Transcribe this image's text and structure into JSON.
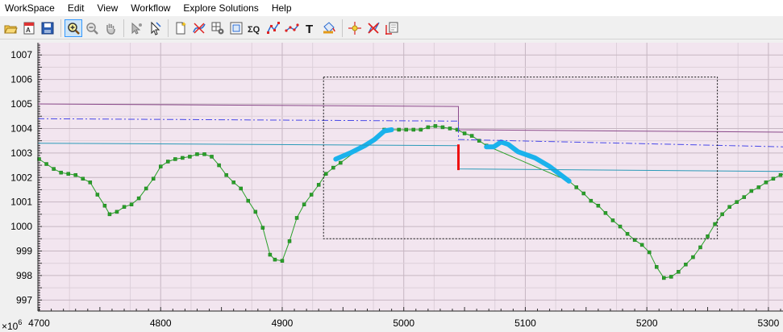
{
  "menu": [
    "WorkSpace",
    "Edit",
    "View",
    "Workflow",
    "Explore Solutions",
    "Help"
  ],
  "toolbar": {
    "buttons": [
      {
        "icon": "open-folder-icon"
      },
      {
        "icon": "text-report-icon"
      },
      {
        "icon": "save-icon"
      },
      {
        "sep": true
      },
      {
        "icon": "zoom-in-icon",
        "active": true
      },
      {
        "icon": "zoom-out-icon"
      },
      {
        "icon": "pan-hand-icon"
      },
      {
        "sep": true
      },
      {
        "icon": "select-point-icon"
      },
      {
        "icon": "select-cursor-icon"
      },
      {
        "sep": true
      },
      {
        "icon": "new-document-icon"
      },
      {
        "icon": "curve-edit-icon"
      },
      {
        "icon": "grid-gear-icon"
      },
      {
        "icon": "fit-window-icon"
      },
      {
        "icon": "sigma-q-icon"
      },
      {
        "icon": "line-markers-icon"
      },
      {
        "icon": "scatter-icon"
      },
      {
        "icon": "text-t-icon"
      },
      {
        "icon": "paint-bucket-icon"
      },
      {
        "sep": true
      },
      {
        "icon": "crosshair-icon"
      },
      {
        "icon": "delete-point-icon"
      },
      {
        "icon": "cursor-point-icon"
      }
    ]
  },
  "chart_data": {
    "type": "line",
    "xlim": [
      4699,
      5312
    ],
    "ylim": [
      996.55,
      1007.5
    ],
    "x_ticks": [
      4700,
      4800,
      4900,
      5000,
      5100,
      5200,
      5300
    ],
    "y_ticks": [
      997,
      998,
      999,
      1000,
      1001,
      1002,
      1003,
      1004,
      1005,
      1006,
      1007
    ],
    "x_tick_labels": [
      "4700",
      "4800",
      "4900",
      "5000",
      "5100",
      "5200",
      "5300"
    ],
    "y_tick_labels": [
      "997",
      "998",
      "999",
      "1000",
      "1001",
      "1002",
      "1003",
      "1004",
      "1005",
      "1006",
      "1007"
    ],
    "y_multiplier_label": "×10",
    "y_multiplier_exp": "6",
    "grid": true,
    "background": "#f2e5ef",
    "colors": {
      "main": "#2aa02a",
      "highlight": "#1ab2ec",
      "purple": "#8b4a8b",
      "dashdot": "#4848e8",
      "teal": "#2a9ab8",
      "red": "#ee1111"
    },
    "series": [
      {
        "style": "line-markers",
        "points": [
          [
            4700,
            1002.75
          ],
          [
            4706,
            1002.55
          ],
          [
            4712,
            1002.35
          ],
          [
            4718,
            1002.2
          ],
          [
            4724,
            1002.15
          ],
          [
            4730,
            1002.1
          ],
          [
            4736,
            1001.95
          ],
          [
            4742,
            1001.8
          ],
          [
            4748,
            1001.3
          ],
          [
            4754,
            1000.85
          ],
          [
            4758,
            1000.5
          ],
          [
            4764,
            1000.6
          ],
          [
            4770,
            1000.8
          ],
          [
            4776,
            1000.9
          ],
          [
            4782,
            1001.15
          ],
          [
            4788,
            1001.55
          ],
          [
            4794,
            1001.95
          ],
          [
            4800,
            1002.45
          ],
          [
            4806,
            1002.65
          ],
          [
            4812,
            1002.75
          ],
          [
            4818,
            1002.8
          ],
          [
            4824,
            1002.85
          ],
          [
            4830,
            1002.95
          ],
          [
            4836,
            1002.95
          ],
          [
            4842,
            1002.85
          ],
          [
            4848,
            1002.5
          ],
          [
            4854,
            1002.1
          ],
          [
            4860,
            1001.8
          ],
          [
            4866,
            1001.55
          ],
          [
            4872,
            1001.05
          ],
          [
            4878,
            1000.6
          ],
          [
            4884,
            999.95
          ],
          [
            4890,
            998.85
          ],
          [
            4894,
            998.65
          ],
          [
            4900,
            998.6
          ],
          [
            4906,
            999.4
          ],
          [
            4912,
            1000.35
          ],
          [
            4918,
            1000.9
          ],
          [
            4924,
            1001.3
          ],
          [
            4930,
            1001.7
          ],
          [
            4936,
            1002.15
          ],
          [
            4942,
            1002.4
          ],
          [
            4948,
            1002.6
          ],
          [
            4984,
            1003.95
          ],
          [
            4990,
            1003.95
          ],
          [
            4996,
            1003.95
          ],
          [
            5002,
            1003.95
          ],
          [
            5008,
            1003.95
          ],
          [
            5014,
            1003.95
          ],
          [
            5020,
            1004.05
          ],
          [
            5026,
            1004.1
          ],
          [
            5032,
            1004.05
          ],
          [
            5038,
            1004.0
          ],
          [
            5044,
            1003.95
          ],
          [
            5050,
            1003.8
          ],
          [
            5056,
            1003.7
          ],
          [
            5062,
            1003.5
          ],
          [
            5068,
            1003.3
          ],
          [
            5136,
            1001.85
          ],
          [
            5142,
            1001.6
          ],
          [
            5148,
            1001.35
          ],
          [
            5154,
            1001.05
          ],
          [
            5160,
            1000.85
          ],
          [
            5166,
            1000.55
          ],
          [
            5172,
            1000.25
          ],
          [
            5178,
            1000.0
          ],
          [
            5184,
            999.7
          ],
          [
            5190,
            999.45
          ],
          [
            5196,
            999.25
          ],
          [
            5202,
            998.95
          ],
          [
            5208,
            998.35
          ],
          [
            5214,
            997.9
          ],
          [
            5220,
            997.95
          ],
          [
            5226,
            998.15
          ],
          [
            5232,
            998.45
          ],
          [
            5238,
            998.75
          ],
          [
            5244,
            999.15
          ],
          [
            5250,
            999.6
          ],
          [
            5256,
            1000.1
          ],
          [
            5262,
            1000.5
          ],
          [
            5268,
            1000.8
          ],
          [
            5274,
            1001.0
          ],
          [
            5280,
            1001.2
          ],
          [
            5286,
            1001.45
          ],
          [
            5292,
            1001.6
          ],
          [
            5298,
            1001.8
          ],
          [
            5304,
            1001.95
          ],
          [
            5310,
            1002.1
          ],
          [
            5316,
            1002.2
          ]
        ]
      },
      {
        "style": "highlight",
        "segments": [
          [
            [
              4944,
              1002.75
            ],
            [
              4956,
              1003.0
            ],
            [
              4968,
              1003.3
            ],
            [
              4976,
              1003.55
            ],
            [
              4984,
              1003.9
            ],
            [
              4990,
              1003.95
            ]
          ],
          [
            [
              5068,
              1003.25
            ],
            [
              5074,
              1003.25
            ],
            [
              5080,
              1003.45
            ],
            [
              5086,
              1003.35
            ],
            [
              5094,
              1003.05
            ],
            [
              5108,
              1002.8
            ],
            [
              5120,
              1002.45
            ],
            [
              5136,
              1001.85
            ]
          ]
        ]
      },
      {
        "style": "step",
        "color": "purple",
        "points": [
          [
            4699,
            1005.0
          ],
          [
            5045,
            1004.9
          ],
          [
            5045,
            1003.95
          ],
          [
            5312,
            1003.85
          ]
        ]
      },
      {
        "style": "dashdot",
        "color": "dashdot",
        "points": [
          [
            4699,
            1004.4
          ],
          [
            5045,
            1004.3
          ],
          [
            5045,
            1003.55
          ],
          [
            5312,
            1003.25
          ]
        ]
      },
      {
        "style": "step",
        "color": "teal",
        "points": [
          [
            4699,
            1003.4
          ],
          [
            5045,
            1003.3
          ],
          [
            5045,
            1002.35
          ],
          [
            5312,
            1002.25
          ]
        ]
      },
      {
        "style": "solid",
        "color": "red",
        "points": [
          [
            5045,
            1003.35
          ],
          [
            5045,
            1002.3
          ]
        ]
      }
    ],
    "zoom_box": {
      "x": [
        4934,
        5258
      ],
      "y": [
        999.5,
        1006.1
      ]
    }
  }
}
